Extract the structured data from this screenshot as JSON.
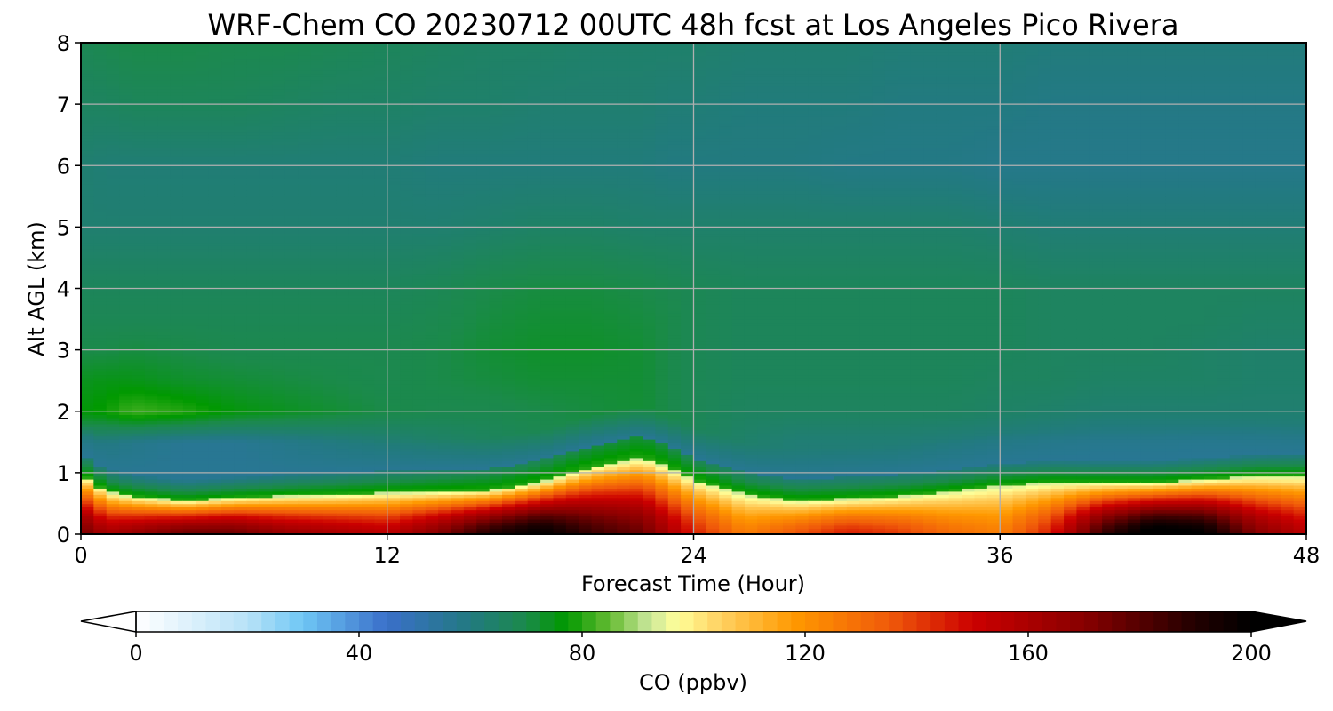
{
  "chart_data": {
    "type": "heatmap",
    "title": "WRF-Chem CO  20230712 00UTC 48h fcst at Los Angeles Pico Rivera",
    "xlabel": "Forecast Time (Hour)",
    "ylabel": "Alt AGL (km)",
    "xlim": [
      0,
      48
    ],
    "ylim": [
      0,
      8
    ],
    "xticks": [
      0,
      12,
      24,
      36,
      48
    ],
    "yticks": [
      0,
      1,
      2,
      3,
      4,
      5,
      6,
      7,
      8
    ],
    "grid": true,
    "colorbar": {
      "label": "CO  (ppbv)",
      "orientation": "horizontal",
      "placement": "bottom",
      "min": 0,
      "max": 200,
      "extend": "both",
      "ticks": [
        0,
        40,
        80,
        120,
        160,
        200
      ],
      "stops": [
        {
          "value": 0,
          "color": "#ffffff"
        },
        {
          "value": 20,
          "color": "#b8e2f7"
        },
        {
          "value": 30,
          "color": "#6ec6f5"
        },
        {
          "value": 45,
          "color": "#3a6fc9"
        },
        {
          "value": 60,
          "color": "#227a80"
        },
        {
          "value": 70,
          "color": "#1b8a4a"
        },
        {
          "value": 77,
          "color": "#009900"
        },
        {
          "value": 85,
          "color": "#66bb33"
        },
        {
          "value": 92,
          "color": "#c8e79a"
        },
        {
          "value": 97,
          "color": "#ffff99"
        },
        {
          "value": 105,
          "color": "#ffd060"
        },
        {
          "value": 118,
          "color": "#ff9900"
        },
        {
          "value": 135,
          "color": "#f05a0a"
        },
        {
          "value": 150,
          "color": "#cc0000"
        },
        {
          "value": 170,
          "color": "#880000"
        },
        {
          "value": 190,
          "color": "#220000"
        },
        {
          "value": 200,
          "color": "#000000"
        }
      ]
    },
    "field": {
      "times": [
        0,
        1,
        2,
        4,
        6,
        8,
        10,
        12,
        14,
        16,
        18,
        20,
        22,
        23,
        24,
        26,
        28,
        30,
        32,
        34,
        36,
        38,
        40,
        42,
        44,
        46,
        48
      ],
      "boundary_layer_top_km": [
        1.0,
        0.7,
        0.62,
        0.55,
        0.6,
        0.63,
        0.65,
        0.68,
        0.7,
        0.72,
        0.85,
        1.1,
        1.25,
        1.1,
        0.9,
        0.65,
        0.55,
        0.58,
        0.62,
        0.7,
        0.8,
        0.85,
        0.85,
        0.85,
        0.9,
        0.95,
        0.95
      ],
      "surface_peak_co_ppbv": [
        175,
        160,
        165,
        175,
        175,
        165,
        160,
        155,
        170,
        190,
        200,
        185,
        175,
        160,
        145,
        125,
        135,
        145,
        140,
        130,
        125,
        145,
        185,
        205,
        200,
        170,
        155
      ],
      "upper_levels_km": [
        1.5,
        2.0,
        2.5,
        3.0,
        3.5,
        4.0,
        5.0,
        6.0,
        7.0,
        8.0
      ],
      "upper_co_ppbv": [
        [
          62,
          76,
          74,
          70,
          68,
          67,
          63,
          63,
          66,
          68
        ],
        [
          60,
          78,
          75,
          70,
          68,
          67,
          63,
          62,
          66,
          69
        ],
        [
          58,
          82,
          75,
          71,
          68,
          67,
          63,
          62,
          67,
          70
        ],
        [
          56,
          80,
          73,
          70,
          68,
          67,
          63,
          62,
          67,
          70
        ],
        [
          56,
          76,
          72,
          69,
          68,
          67,
          63,
          62,
          67,
          69
        ],
        [
          58,
          74,
          71,
          69,
          68,
          67,
          63,
          62,
          66,
          69
        ],
        [
          60,
          72,
          70,
          69,
          68,
          67,
          63,
          62,
          65,
          68
        ],
        [
          62,
          70,
          69,
          69,
          68,
          67,
          63,
          62,
          65,
          67
        ],
        [
          64,
          69,
          70,
          70,
          69,
          68,
          63,
          61,
          64,
          66
        ],
        [
          66,
          69,
          71,
          72,
          71,
          70,
          64,
          61,
          64,
          65
        ],
        [
          68,
          70,
          72,
          73,
          72,
          71,
          65,
          61,
          63,
          65
        ],
        [
          70,
          71,
          72,
          73,
          72,
          71,
          65,
          61,
          63,
          64
        ],
        [
          72,
          72,
          72,
          72,
          71,
          70,
          64,
          61,
          63,
          64
        ],
        [
          70,
          70,
          70,
          70,
          70,
          69,
          64,
          60,
          62,
          64
        ],
        [
          67,
          68,
          68,
          68,
          68,
          68,
          64,
          60,
          62,
          64
        ],
        [
          64,
          66,
          67,
          67,
          67,
          67,
          64,
          60,
          61,
          63
        ],
        [
          62,
          66,
          67,
          67,
          67,
          67,
          64,
          60,
          61,
          63
        ],
        [
          62,
          66,
          67,
          67,
          67,
          67,
          64,
          59,
          61,
          63
        ],
        [
          62,
          66,
          67,
          67,
          67,
          67,
          64,
          59,
          60,
          62
        ],
        [
          61,
          66,
          67,
          67,
          67,
          67,
          64,
          59,
          60,
          62
        ],
        [
          60,
          65,
          66,
          67,
          67,
          67,
          63,
          58,
          60,
          62
        ],
        [
          59,
          64,
          66,
          66,
          66,
          66,
          62,
          58,
          59,
          61
        ],
        [
          58,
          63,
          65,
          66,
          66,
          66,
          62,
          58,
          59,
          61
        ],
        [
          58,
          63,
          65,
          66,
          66,
          66,
          62,
          58,
          59,
          61
        ],
        [
          58,
          63,
          65,
          65,
          66,
          66,
          62,
          58,
          59,
          61
        ],
        [
          59,
          63,
          64,
          64,
          65,
          66,
          62,
          58,
          59,
          61
        ],
        [
          60,
          63,
          64,
          64,
          65,
          66,
          62,
          58,
          59,
          61
        ]
      ]
    }
  }
}
